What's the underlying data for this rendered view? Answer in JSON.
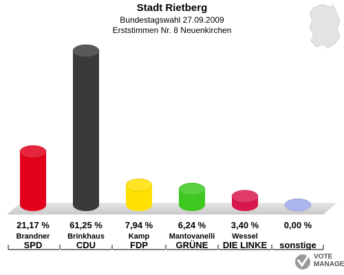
{
  "chart_data": {
    "type": "bar",
    "title": "Stadt Rietberg",
    "subtitle": "Bundestagswahl 27.09.2009",
    "subtitle2": "Erststimmen Nr. 8 Neuenkirchen",
    "categories": [
      "SPD",
      "CDU",
      "FDP",
      "GRÜNE",
      "DIE LINKE",
      "sonstige"
    ],
    "candidates": [
      "Brandner",
      "Brinkhaus",
      "Kamp",
      "Mantovanelli",
      "Wessel",
      ""
    ],
    "values": [
      21.17,
      61.25,
      7.94,
      6.24,
      3.4,
      0.0
    ],
    "value_labels": [
      "21,17 %",
      "61,25 %",
      "7,94 %",
      "6,24 %",
      "3,40 %",
      "0,00 %"
    ],
    "colors": [
      "#e2001a",
      "#3a3a3a",
      "#ffe000",
      "#3cc81e",
      "#d9174d",
      "#aab4ee"
    ],
    "ylim": [
      0,
      65
    ],
    "legend": "none",
    "grid": false
  },
  "logo": {
    "line1": "VOTE",
    "line2": "MANAGER"
  }
}
